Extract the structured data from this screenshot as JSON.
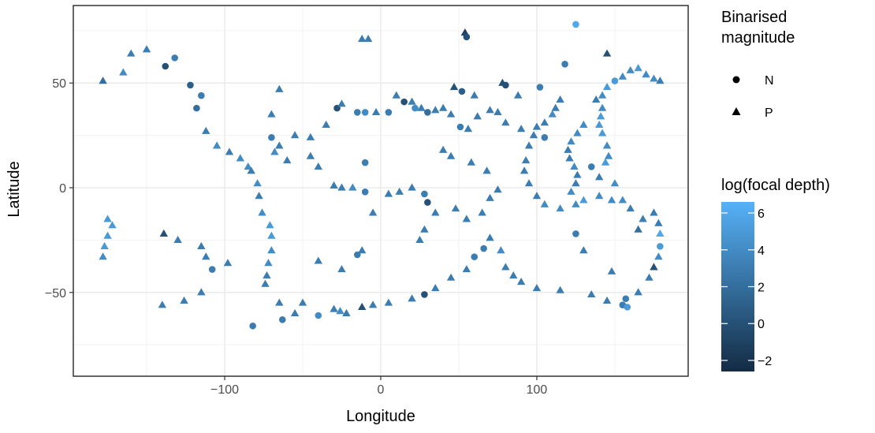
{
  "chart_data": {
    "type": "scatter",
    "xlabel": "Longitude",
    "ylabel": "Latitude",
    "xlim": [
      -197,
      197
    ],
    "ylim": [
      -90,
      87
    ],
    "x_ticks": [
      -100,
      0,
      100
    ],
    "x_tick_labels": [
      "−100",
      "0",
      "100"
    ],
    "y_ticks": [
      -50,
      0,
      50
    ],
    "y_tick_labels": [
      "−50",
      "0",
      "50"
    ],
    "grid": true,
    "shape_legend": {
      "title_lines": [
        "Binarised",
        "magnitude"
      ],
      "items": [
        {
          "label": "N",
          "shape": "circle"
        },
        {
          "label": "P",
          "shape": "triangle"
        }
      ]
    },
    "color_legend": {
      "title": "log(focal depth)",
      "min": -2.6,
      "max": 6.6,
      "ticks": [
        6,
        4,
        2,
        0,
        -2
      ],
      "tick_labels": [
        "6",
        "4",
        "2",
        "0",
        "−2"
      ],
      "color_low": "#132b43",
      "color_high": "#56b1f7"
    },
    "points": [
      {
        "x": 125,
        "y": 78,
        "d": 6,
        "s": "N"
      },
      {
        "x": -132,
        "y": 62,
        "d": 3,
        "s": "N"
      },
      {
        "x": -165,
        "y": 55,
        "d": 4,
        "s": "P"
      },
      {
        "x": -178,
        "y": 51,
        "d": 2,
        "s": "P"
      },
      {
        "x": -150,
        "y": 66,
        "d": 3,
        "s": "P"
      },
      {
        "x": -160,
        "y": 64,
        "d": 3,
        "s": "P"
      },
      {
        "x": -138,
        "y": 58,
        "d": 0,
        "s": "N"
      },
      {
        "x": -122,
        "y": 49,
        "d": 1,
        "s": "N"
      },
      {
        "x": -118,
        "y": 38,
        "d": 2,
        "s": "N"
      },
      {
        "x": -115,
        "y": 44,
        "d": 3,
        "s": "N"
      },
      {
        "x": -112,
        "y": 27,
        "d": 3,
        "s": "P"
      },
      {
        "x": -105,
        "y": 20,
        "d": 4,
        "s": "P"
      },
      {
        "x": -97,
        "y": 17,
        "d": 3,
        "s": "P"
      },
      {
        "x": -90,
        "y": 14,
        "d": 4,
        "s": "P"
      },
      {
        "x": -85,
        "y": 10,
        "d": 4,
        "s": "P"
      },
      {
        "x": -83,
        "y": 8,
        "d": 3,
        "s": "P"
      },
      {
        "x": -79,
        "y": 2,
        "d": 4,
        "s": "P"
      },
      {
        "x": -78,
        "y": -4,
        "d": 3,
        "s": "P"
      },
      {
        "x": -76,
        "y": -12,
        "d": 4,
        "s": "P"
      },
      {
        "x": -71,
        "y": -18,
        "d": 5,
        "s": "P"
      },
      {
        "x": -70,
        "y": -23,
        "d": 5,
        "s": "P"
      },
      {
        "x": -70,
        "y": -30,
        "d": 4,
        "s": "P"
      },
      {
        "x": -72,
        "y": -36,
        "d": 4,
        "s": "P"
      },
      {
        "x": -73,
        "y": -42,
        "d": 3,
        "s": "P"
      },
      {
        "x": -74,
        "y": -46,
        "d": 3,
        "s": "P"
      },
      {
        "x": -172,
        "y": -18,
        "d": 5,
        "s": "P"
      },
      {
        "x": -175,
        "y": -23,
        "d": 5,
        "s": "P"
      },
      {
        "x": -177,
        "y": -28,
        "d": 5,
        "s": "P"
      },
      {
        "x": -178,
        "y": -33,
        "d": 4,
        "s": "P"
      },
      {
        "x": -175,
        "y": -15,
        "d": 5,
        "s": "P"
      },
      {
        "x": -139,
        "y": -22,
        "d": 0,
        "s": "P"
      },
      {
        "x": -130,
        "y": -25,
        "d": 3,
        "s": "P"
      },
      {
        "x": -115,
        "y": -28,
        "d": 3,
        "s": "P"
      },
      {
        "x": -112,
        "y": -33,
        "d": 3,
        "s": "P"
      },
      {
        "x": -108,
        "y": -39,
        "d": 3,
        "s": "N"
      },
      {
        "x": -98,
        "y": -36,
        "d": 3,
        "s": "P"
      },
      {
        "x": -140,
        "y": -56,
        "d": 3,
        "s": "P"
      },
      {
        "x": -126,
        "y": -54,
        "d": 3,
        "s": "P"
      },
      {
        "x": -115,
        "y": -50,
        "d": 3,
        "s": "P"
      },
      {
        "x": -82,
        "y": -66,
        "d": 3,
        "s": "N"
      },
      {
        "x": -63,
        "y": -63,
        "d": 3,
        "s": "N"
      },
      {
        "x": -55,
        "y": -60,
        "d": 3,
        "s": "P"
      },
      {
        "x": -40,
        "y": -61,
        "d": 4,
        "s": "N"
      },
      {
        "x": -30,
        "y": -58,
        "d": 3,
        "s": "P"
      },
      {
        "x": -26,
        "y": -59,
        "d": 4,
        "s": "P"
      },
      {
        "x": -22,
        "y": -60,
        "d": 3,
        "s": "P"
      },
      {
        "x": -12,
        "y": -57,
        "d": 0,
        "s": "P"
      },
      {
        "x": -5,
        "y": -56,
        "d": 3,
        "s": "P"
      },
      {
        "x": 5,
        "y": -55,
        "d": 3,
        "s": "P"
      },
      {
        "x": 20,
        "y": -53,
        "d": 3,
        "s": "P"
      },
      {
        "x": 28,
        "y": -51,
        "d": 0,
        "s": "N"
      },
      {
        "x": 35,
        "y": -48,
        "d": 3,
        "s": "P"
      },
      {
        "x": 45,
        "y": -43,
        "d": 3,
        "s": "P"
      },
      {
        "x": 55,
        "y": -39,
        "d": 3,
        "s": "P"
      },
      {
        "x": 60,
        "y": -33,
        "d": 3,
        "s": "N"
      },
      {
        "x": 66,
        "y": -29,
        "d": 3,
        "s": "N"
      },
      {
        "x": 70,
        "y": -24,
        "d": 3,
        "s": "P"
      },
      {
        "x": 77,
        "y": -30,
        "d": 4,
        "s": "P"
      },
      {
        "x": 80,
        "y": -38,
        "d": 3,
        "s": "P"
      },
      {
        "x": 85,
        "y": -42,
        "d": 3,
        "s": "P"
      },
      {
        "x": 90,
        "y": -45,
        "d": 3,
        "s": "P"
      },
      {
        "x": 100,
        "y": -48,
        "d": 3,
        "s": "P"
      },
      {
        "x": 115,
        "y": -49,
        "d": 3,
        "s": "P"
      },
      {
        "x": 135,
        "y": -51,
        "d": 3,
        "s": "P"
      },
      {
        "x": 145,
        "y": -54,
        "d": 3,
        "s": "P"
      },
      {
        "x": 155,
        "y": -56,
        "d": 3,
        "s": "N"
      },
      {
        "x": 158,
        "y": -57,
        "d": 5,
        "s": "N"
      },
      {
        "x": 165,
        "y": -50,
        "d": 3,
        "s": "P"
      },
      {
        "x": 172,
        "y": -43,
        "d": 3,
        "s": "P"
      },
      {
        "x": 175,
        "y": -38,
        "d": 0,
        "s": "P"
      },
      {
        "x": 178,
        "y": -33,
        "d": 4,
        "s": "P"
      },
      {
        "x": 179,
        "y": -28,
        "d": 5,
        "s": "N"
      },
      {
        "x": 179,
        "y": -22,
        "d": 6,
        "s": "P"
      },
      {
        "x": 178,
        "y": -17,
        "d": 3,
        "s": "P"
      },
      {
        "x": 175,
        "y": -12,
        "d": 3,
        "s": "P"
      },
      {
        "x": 168,
        "y": -15,
        "d": 3,
        "s": "P"
      },
      {
        "x": 165,
        "y": -20,
        "d": 2,
        "s": "P"
      },
      {
        "x": 160,
        "y": -10,
        "d": 3,
        "s": "P"
      },
      {
        "x": 155,
        "y": -6,
        "d": 4,
        "s": "P"
      },
      {
        "x": 148,
        "y": -6,
        "d": 4,
        "s": "P"
      },
      {
        "x": 140,
        "y": -4,
        "d": 4,
        "s": "P"
      },
      {
        "x": 130,
        "y": -6,
        "d": 5,
        "s": "P"
      },
      {
        "x": 125,
        "y": -8,
        "d": 4,
        "s": "P"
      },
      {
        "x": 115,
        "y": -10,
        "d": 4,
        "s": "P"
      },
      {
        "x": 105,
        "y": -8,
        "d": 4,
        "s": "P"
      },
      {
        "x": 100,
        "y": -4,
        "d": 3,
        "s": "P"
      },
      {
        "x": 95,
        "y": 2,
        "d": 3,
        "s": "P"
      },
      {
        "x": 92,
        "y": 8,
        "d": 3,
        "s": "P"
      },
      {
        "x": 93,
        "y": 13,
        "d": 3,
        "s": "P"
      },
      {
        "x": 95,
        "y": 20,
        "d": 3,
        "s": "P"
      },
      {
        "x": 98,
        "y": 25,
        "d": 3,
        "s": "P"
      },
      {
        "x": 100,
        "y": 29,
        "d": 3,
        "s": "P"
      },
      {
        "x": 105,
        "y": 31,
        "d": 3,
        "s": "P"
      },
      {
        "x": 90,
        "y": 28,
        "d": 3,
        "s": "P"
      },
      {
        "x": 80,
        "y": 31,
        "d": 3,
        "s": "P"
      },
      {
        "x": 75,
        "y": 36,
        "d": 3,
        "s": "P"
      },
      {
        "x": 70,
        "y": 37,
        "d": 3,
        "s": "P"
      },
      {
        "x": 62,
        "y": 34,
        "d": 3,
        "s": "P"
      },
      {
        "x": 56,
        "y": 28,
        "d": 3,
        "s": "P"
      },
      {
        "x": 51,
        "y": 29,
        "d": 3,
        "s": "N"
      },
      {
        "x": 45,
        "y": 35,
        "d": 3,
        "s": "P"
      },
      {
        "x": 40,
        "y": 38,
        "d": 3,
        "s": "P"
      },
      {
        "x": 35,
        "y": 37,
        "d": 3,
        "s": "P"
      },
      {
        "x": 30,
        "y": 36,
        "d": 2,
        "s": "N"
      },
      {
        "x": 26,
        "y": 38,
        "d": 3,
        "s": "P"
      },
      {
        "x": 22,
        "y": 38,
        "d": 4,
        "s": "N"
      },
      {
        "x": 20,
        "y": 41,
        "d": 3,
        "s": "P"
      },
      {
        "x": 15,
        "y": 41,
        "d": 0,
        "s": "N"
      },
      {
        "x": 10,
        "y": 44,
        "d": 3,
        "s": "P"
      },
      {
        "x": 5,
        "y": 36,
        "d": 3,
        "s": "N"
      },
      {
        "x": -3,
        "y": 36,
        "d": 3,
        "s": "P"
      },
      {
        "x": -10,
        "y": 36,
        "d": 4,
        "s": "N"
      },
      {
        "x": -15,
        "y": 36,
        "d": 3,
        "s": "N"
      },
      {
        "x": -28,
        "y": 38,
        "d": 0,
        "s": "N"
      },
      {
        "x": -25,
        "y": 40,
        "d": 3,
        "s": "P"
      },
      {
        "x": -12,
        "y": 71,
        "d": 3,
        "s": "P"
      },
      {
        "x": -8,
        "y": 71,
        "d": 3,
        "s": "P"
      },
      {
        "x": 54,
        "y": 74,
        "d": -1,
        "s": "P"
      },
      {
        "x": 55,
        "y": 72,
        "d": 0,
        "s": "N"
      },
      {
        "x": 47,
        "y": 48,
        "d": 0,
        "s": "P"
      },
      {
        "x": 52,
        "y": 46,
        "d": 1,
        "s": "N"
      },
      {
        "x": 60,
        "y": 44,
        "d": 3,
        "s": "P"
      },
      {
        "x": 78,
        "y": 50,
        "d": 0,
        "s": "P"
      },
      {
        "x": 80,
        "y": 49,
        "d": 0,
        "s": "N"
      },
      {
        "x": 88,
        "y": 44,
        "d": 3,
        "s": "P"
      },
      {
        "x": 102,
        "y": 48,
        "d": 3,
        "s": "N"
      },
      {
        "x": 118,
        "y": 59,
        "d": 3,
        "s": "N"
      },
      {
        "x": 145,
        "y": 64,
        "d": 0,
        "s": "P"
      },
      {
        "x": 138,
        "y": 42,
        "d": 3,
        "s": "P"
      },
      {
        "x": 142,
        "y": 44,
        "d": 4,
        "s": "P"
      },
      {
        "x": 145,
        "y": 48,
        "d": 5,
        "s": "P"
      },
      {
        "x": 150,
        "y": 51,
        "d": 5,
        "s": "N"
      },
      {
        "x": 155,
        "y": 53,
        "d": 4,
        "s": "P"
      },
      {
        "x": 160,
        "y": 56,
        "d": 4,
        "s": "P"
      },
      {
        "x": 165,
        "y": 57,
        "d": 5,
        "s": "P"
      },
      {
        "x": 170,
        "y": 54,
        "d": 4,
        "s": "P"
      },
      {
        "x": 175,
        "y": 52,
        "d": 4,
        "s": "P"
      },
      {
        "x": 179,
        "y": 51,
        "d": 3,
        "s": "P"
      },
      {
        "x": 142,
        "y": 38,
        "d": 4,
        "s": "P"
      },
      {
        "x": 141,
        "y": 34,
        "d": 5,
        "s": "P"
      },
      {
        "x": 140,
        "y": 30,
        "d": 5,
        "s": "P"
      },
      {
        "x": 142,
        "y": 26,
        "d": 5,
        "s": "P"
      },
      {
        "x": 145,
        "y": 20,
        "d": 4,
        "s": "P"
      },
      {
        "x": 146,
        "y": 15,
        "d": 4,
        "s": "P"
      },
      {
        "x": 144,
        "y": 12,
        "d": 5,
        "s": "P"
      },
      {
        "x": 130,
        "y": 30,
        "d": 4,
        "s": "P"
      },
      {
        "x": 126,
        "y": 26,
        "d": 4,
        "s": "P"
      },
      {
        "x": 122,
        "y": 22,
        "d": 4,
        "s": "P"
      },
      {
        "x": 120,
        "y": 18,
        "d": 3,
        "s": "P"
      },
      {
        "x": 121,
        "y": 14,
        "d": 3,
        "s": "P"
      },
      {
        "x": 124,
        "y": 10,
        "d": 4,
        "s": "P"
      },
      {
        "x": 126,
        "y": 6,
        "d": 3,
        "s": "P"
      },
      {
        "x": 125,
        "y": 2,
        "d": 3,
        "s": "P"
      },
      {
        "x": 122,
        "y": -2,
        "d": 4,
        "s": "P"
      },
      {
        "x": 135,
        "y": 10,
        "d": 3,
        "s": "N"
      },
      {
        "x": 140,
        "y": 5,
        "d": 3,
        "s": "P"
      },
      {
        "x": 150,
        "y": 2,
        "d": 4,
        "s": "P"
      },
      {
        "x": 125,
        "y": -22,
        "d": 3,
        "s": "N"
      },
      {
        "x": 130,
        "y": -30,
        "d": 3,
        "s": "P"
      },
      {
        "x": 148,
        "y": -40,
        "d": 3,
        "s": "P"
      },
      {
        "x": 157,
        "y": -53,
        "d": 3,
        "s": "N"
      },
      {
        "x": 115,
        "y": 42,
        "d": 3,
        "s": "P"
      },
      {
        "x": 112,
        "y": 38,
        "d": 3,
        "s": "P"
      },
      {
        "x": 110,
        "y": 35,
        "d": 4,
        "s": "P"
      },
      {
        "x": 105,
        "y": 24,
        "d": 3,
        "s": "N"
      },
      {
        "x": -10,
        "y": 12,
        "d": 3,
        "s": "N"
      },
      {
        "x": -30,
        "y": 1,
        "d": 3,
        "s": "P"
      },
      {
        "x": -25,
        "y": 0,
        "d": 3,
        "s": "P"
      },
      {
        "x": -18,
        "y": 0,
        "d": 4,
        "s": "P"
      },
      {
        "x": -10,
        "y": -2,
        "d": 3,
        "s": "N"
      },
      {
        "x": -5,
        "y": -12,
        "d": 3,
        "s": "P"
      },
      {
        "x": -12,
        "y": -30,
        "d": 3,
        "s": "P"
      },
      {
        "x": -15,
        "y": -32,
        "d": 3,
        "s": "N"
      },
      {
        "x": -25,
        "y": -39,
        "d": 3,
        "s": "P"
      },
      {
        "x": -40,
        "y": -35,
        "d": 3,
        "s": "P"
      },
      {
        "x": -50,
        "y": -55,
        "d": 3,
        "s": "P"
      },
      {
        "x": -65,
        "y": -55,
        "d": 3,
        "s": "P"
      },
      {
        "x": -40,
        "y": 10,
        "d": 3,
        "s": "P"
      },
      {
        "x": -45,
        "y": 15,
        "d": 3,
        "s": "P"
      },
      {
        "x": -60,
        "y": 13,
        "d": 3,
        "s": "P"
      },
      {
        "x": -68,
        "y": 17,
        "d": 4,
        "s": "P"
      },
      {
        "x": -65,
        "y": 20,
        "d": 3,
        "s": "P"
      },
      {
        "x": -70,
        "y": 24,
        "d": 3,
        "s": "N"
      },
      {
        "x": -55,
        "y": 25,
        "d": 3,
        "s": "P"
      },
      {
        "x": -45,
        "y": 24,
        "d": 3,
        "s": "P"
      },
      {
        "x": -35,
        "y": 30,
        "d": 3,
        "s": "P"
      },
      {
        "x": -70,
        "y": 35,
        "d": 3,
        "s": "P"
      },
      {
        "x": -65,
        "y": 47,
        "d": 3,
        "s": "P"
      },
      {
        "x": 5,
        "y": -3,
        "d": 3,
        "s": "P"
      },
      {
        "x": 12,
        "y": -2,
        "d": 3,
        "s": "P"
      },
      {
        "x": 20,
        "y": 0,
        "d": 3,
        "s": "P"
      },
      {
        "x": 28,
        "y": -3,
        "d": 3,
        "s": "N"
      },
      {
        "x": 30,
        "y": -7,
        "d": 0,
        "s": "N"
      },
      {
        "x": 35,
        "y": -12,
        "d": 3,
        "s": "P"
      },
      {
        "x": 28,
        "y": -20,
        "d": 3,
        "s": "P"
      },
      {
        "x": 25,
        "y": -25,
        "d": 3,
        "s": "P"
      },
      {
        "x": 48,
        "y": -10,
        "d": 3,
        "s": "P"
      },
      {
        "x": 55,
        "y": -15,
        "d": 3,
        "s": "P"
      },
      {
        "x": 65,
        "y": -12,
        "d": 3,
        "s": "P"
      },
      {
        "x": 70,
        "y": -5,
        "d": 3,
        "s": "P"
      },
      {
        "x": 75,
        "y": -1,
        "d": 3,
        "s": "P"
      },
      {
        "x": 68,
        "y": 8,
        "d": 3,
        "s": "P"
      },
      {
        "x": 58,
        "y": 12,
        "d": 3,
        "s": "P"
      },
      {
        "x": 45,
        "y": 15,
        "d": 3,
        "s": "P"
      },
      {
        "x": 40,
        "y": 18,
        "d": 3,
        "s": "P"
      }
    ]
  }
}
